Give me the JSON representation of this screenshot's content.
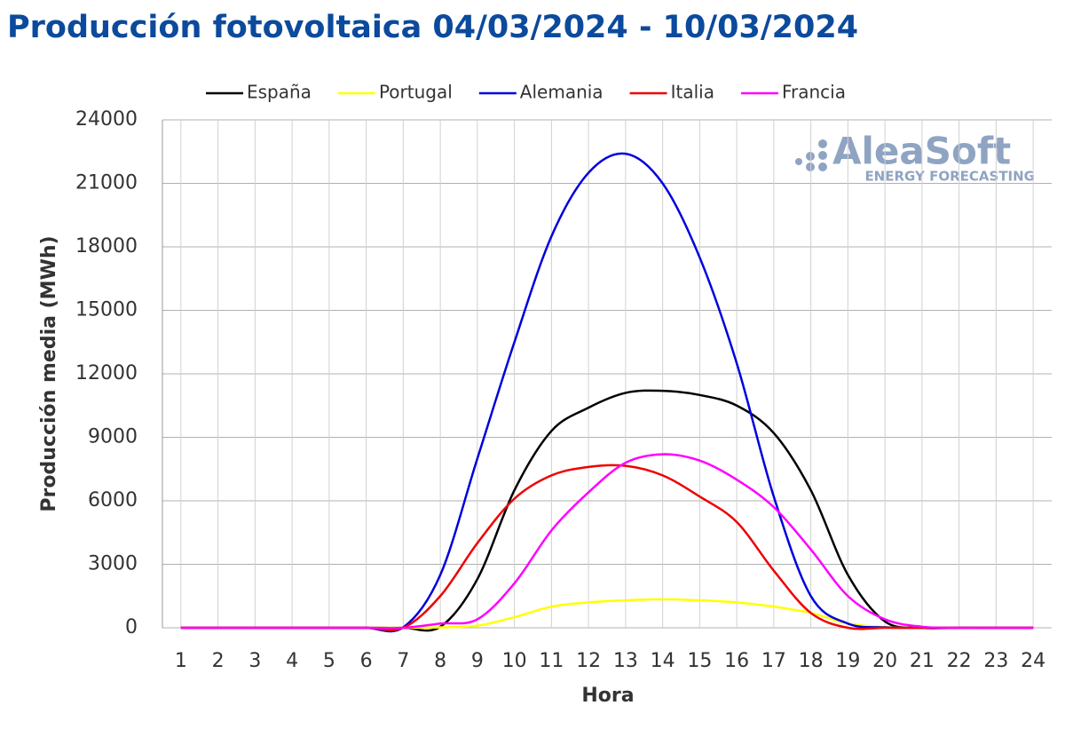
{
  "chart_data": {
    "type": "line",
    "title": "Producción fotovoltaica 04/03/2024 - 10/03/2024",
    "x_label": "Hora",
    "y_label": "Producción media (MWh)",
    "logo": "AleaSoft",
    "logo_subtitle": "ENERGY FORECASTING",
    "x": [
      1,
      2,
      3,
      4,
      5,
      6,
      7,
      8,
      9,
      10,
      11,
      12,
      13,
      14,
      15,
      16,
      17,
      18,
      19,
      20,
      21,
      22,
      23,
      24
    ],
    "xlim": [
      0.5,
      24.5
    ],
    "xticks": [
      1,
      2,
      3,
      4,
      5,
      6,
      7,
      8,
      9,
      10,
      11,
      12,
      13,
      14,
      15,
      16,
      17,
      18,
      19,
      20,
      21,
      22,
      23,
      24
    ],
    "ylim": [
      0,
      24000
    ],
    "yticks": [
      0,
      3000,
      6000,
      9000,
      12000,
      15000,
      18000,
      21000,
      24000
    ],
    "grid": true,
    "legend": "top",
    "series": [
      {
        "name": "España",
        "color": "#000000",
        "values": [
          0,
          0,
          0,
          0,
          0,
          0,
          0,
          50,
          2300,
          6500,
          9300,
          10400,
          11100,
          11200,
          11000,
          10500,
          9200,
          6500,
          2500,
          300,
          0,
          0,
          0,
          0
        ]
      },
      {
        "name": "Portugal",
        "color": "#ffff00",
        "values": [
          0,
          0,
          0,
          0,
          0,
          0,
          0,
          20,
          100,
          500,
          1000,
          1200,
          1300,
          1350,
          1300,
          1200,
          1000,
          700,
          200,
          30,
          0,
          0,
          0,
          0
        ]
      },
      {
        "name": "Alemania",
        "color": "#0000dd",
        "values": [
          0,
          0,
          0,
          0,
          0,
          0,
          20,
          2500,
          8000,
          13500,
          18500,
          21500,
          22400,
          21000,
          17500,
          12500,
          6200,
          1500,
          200,
          20,
          0,
          0,
          0,
          0
        ]
      },
      {
        "name": "Italia",
        "color": "#ee0000",
        "values": [
          0,
          0,
          0,
          0,
          0,
          0,
          0,
          1500,
          4000,
          6100,
          7200,
          7600,
          7650,
          7200,
          6200,
          5000,
          2700,
          700,
          0,
          0,
          0,
          0,
          0,
          0
        ]
      },
      {
        "name": "Francia",
        "color": "#ff00ff",
        "values": [
          0,
          0,
          0,
          0,
          0,
          0,
          0,
          200,
          400,
          2100,
          4600,
          6400,
          7800,
          8200,
          7900,
          7000,
          5700,
          3700,
          1500,
          400,
          50,
          0,
          0,
          0
        ]
      }
    ]
  }
}
